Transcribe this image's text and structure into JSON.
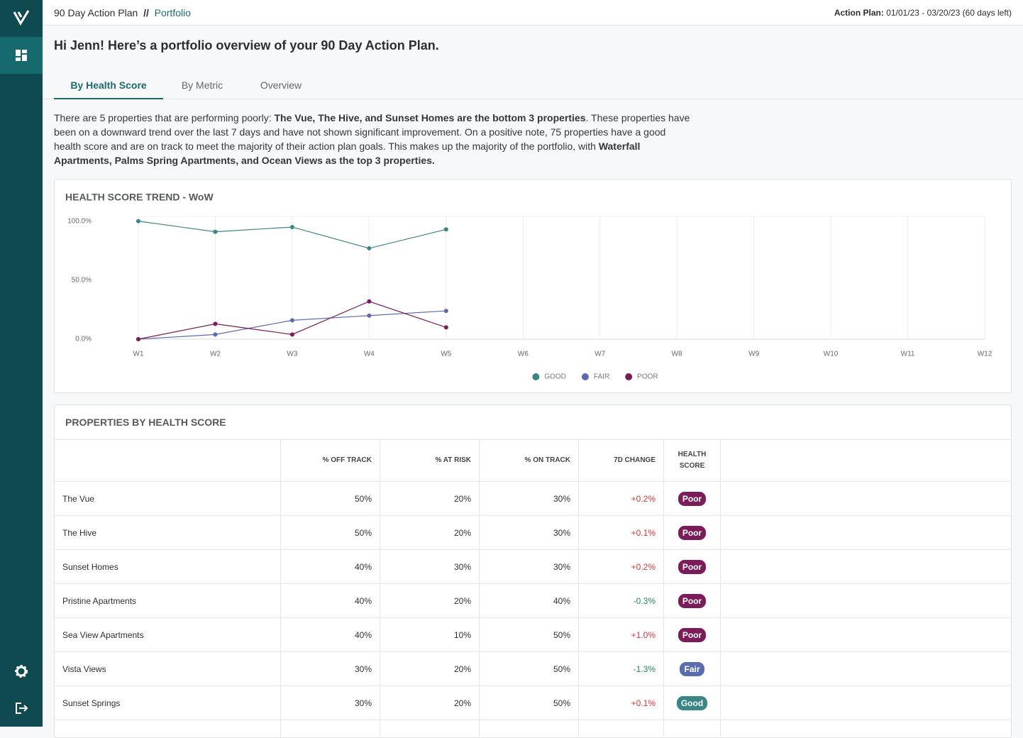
{
  "header": {
    "title": "90 Day Action Plan",
    "separator": "//",
    "crumb": "Portfolio",
    "plan_label": "Action Plan:",
    "plan_dates": "01/01/23 - 03/20/23 (60 days left)"
  },
  "greeting": "Hi Jenn! Here’s a portfolio overview of your 90 Day Action Plan.",
  "tabs": [
    "By Health Score",
    "By Metric",
    "Overview"
  ],
  "summary": [
    {
      "text": "There are 5 properties that are performing poorly: ",
      "bold": false
    },
    {
      "text": "The Vue, The Hive, and Sunset Homes are the bottom 3 properties",
      "bold": true
    },
    {
      "text": ". These properties have been on a downward trend over the last 7 days and have not shown significant improvement. On a positive note, 75 properties have a good health score and are on track to meet the majority of their action plan goals. This makes up the majority of the portfolio, with ",
      "bold": false
    },
    {
      "text": "Waterfall Apartments, Palms Spring Apartments, and Ocean Views as the top 3 properties.",
      "bold": true
    }
  ],
  "chart_data": {
    "type": "line",
    "title": "HEALTH SCORE TREND - WoW",
    "categories": [
      "W1",
      "W2",
      "W3",
      "W4",
      "W5",
      "W6",
      "W7",
      "W8",
      "W9",
      "W10",
      "W11",
      "W12"
    ],
    "series": [
      {
        "name": "GOOD",
        "color": "#3a8585",
        "values": [
          100,
          91,
          95,
          77,
          93,
          null,
          null,
          null,
          null,
          null,
          null,
          null
        ]
      },
      {
        "name": "FAIR",
        "color": "#5b6bb0",
        "values": [
          0,
          4,
          16,
          20,
          24,
          null,
          null,
          null,
          null,
          null,
          null,
          null
        ]
      },
      {
        "name": "POOR",
        "color": "#7a1c5a",
        "values": [
          0,
          13,
          4,
          32,
          10,
          null,
          null,
          null,
          null,
          null,
          null,
          null
        ]
      }
    ],
    "ylim": [
      0,
      104
    ],
    "yticks": [
      {
        "value": 0,
        "label": "0.0%"
      },
      {
        "value": 50,
        "label": "50.0%"
      },
      {
        "value": 100,
        "label": "100.0%"
      }
    ],
    "grid": true,
    "legend": "bottom"
  },
  "table": {
    "title": "PROPERTIES BY HEALTH SCORE",
    "columns": [
      "% OFF TRACK",
      "% AT RISK",
      "% ON TRACK",
      "7D CHANGE",
      "HEALTH SCORE"
    ],
    "rows": [
      [
        "The Vue",
        "50%",
        "20%",
        "30%",
        "+0.2%",
        "Poor"
      ],
      [
        "The Hive",
        "50%",
        "20%",
        "30%",
        "+0.1%",
        "Poor"
      ],
      [
        "Sunset Homes",
        "40%",
        "30%",
        "30%",
        "+0.2%",
        "Poor"
      ],
      [
        "Pristine Apartments",
        "40%",
        "20%",
        "40%",
        "-0.3%",
        "Poor"
      ],
      [
        "Sea View Apartments",
        "40%",
        "10%",
        "50%",
        "+1.0%",
        "Poor"
      ],
      [
        "Vista Views",
        "30%",
        "20%",
        "50%",
        "-1.3%",
        "Fair"
      ],
      [
        "Sunset Springs",
        "30%",
        "20%",
        "50%",
        "+0.1%",
        "Good"
      ]
    ]
  }
}
